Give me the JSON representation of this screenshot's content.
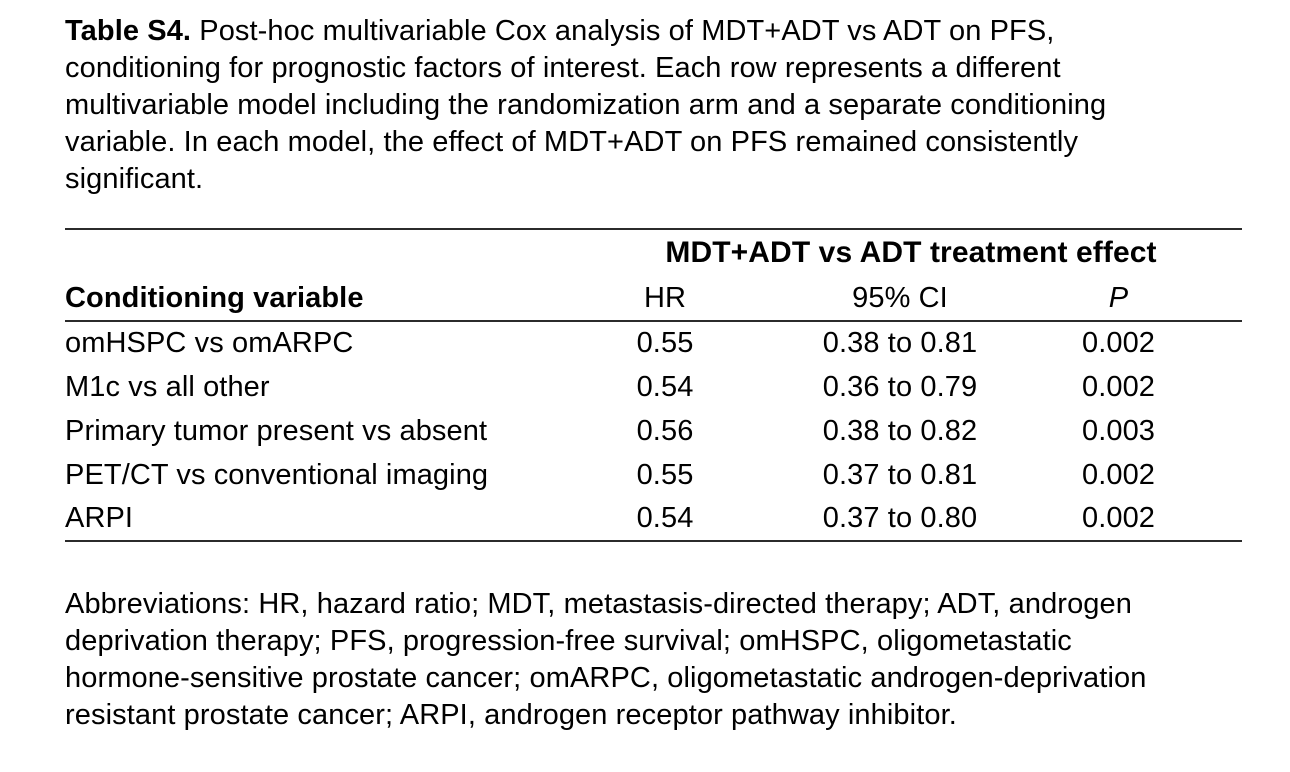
{
  "caption": {
    "label": "Table S4.",
    "text": "Post-hoc multivariable Cox analysis of MDT+ADT vs ADT on PFS,\nconditioning for prognostic factors of interest. Each row represents a different\nmultivariable model including the randomization arm and a separate conditioning\nvariable. In each model, the effect of MDT+ADT on PFS remained consistently\nsignificant."
  },
  "table": {
    "group_header": "MDT+ADT vs ADT treatment effect",
    "columns": [
      "Conditioning variable",
      "HR",
      "95% CI",
      "P"
    ],
    "rows": [
      {
        "variable": "omHSPC vs omARPC",
        "hr": "0.55",
        "ci": "0.38 to 0.81",
        "p": "0.002"
      },
      {
        "variable": "M1c vs all other",
        "hr": "0.54",
        "ci": "0.36 to 0.79",
        "p": "0.002"
      },
      {
        "variable": "Primary tumor present vs absent",
        "hr": "0.56",
        "ci": "0.38 to 0.82",
        "p": "0.003"
      },
      {
        "variable": "PET/CT vs conventional imaging",
        "hr": "0.55",
        "ci": "0.37 to 0.81",
        "p": "0.002"
      },
      {
        "variable": "ARPI",
        "hr": "0.54",
        "ci": "0.37 to 0.80",
        "p": "0.002"
      }
    ]
  },
  "footnote": "Abbreviations: HR, hazard ratio; MDT, metastasis-directed therapy; ADT, androgen\ndeprivation therapy; PFS, progression-free survival; omHSPC, oligometastatic\nhormone-sensitive prostate cancer; omARPC, oligometastatic androgen-deprivation\nresistant prostate cancer; ARPI, androgen receptor pathway inhibitor.",
  "colors": {
    "text": "#000000",
    "background": "#ffffff",
    "rule": "#2b2b2b"
  }
}
